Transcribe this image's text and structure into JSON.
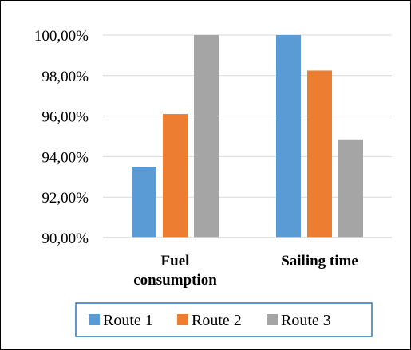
{
  "chart_data": {
    "type": "bar",
    "categories": [
      [
        "Fuel",
        "consumption"
      ],
      [
        "Sailing time"
      ]
    ],
    "series": [
      {
        "name": "Route 1",
        "color": "#5B9BD5",
        "values": [
          93.5,
          100.0
        ]
      },
      {
        "name": "Route 2",
        "color": "#ED7D31",
        "values": [
          96.1,
          98.25
        ]
      },
      {
        "name": "Route 3",
        "color": "#A5A5A5",
        "values": [
          100.0,
          94.85
        ]
      }
    ],
    "y_ticks": [
      "90,00%",
      "92,00%",
      "94,00%",
      "96,00%",
      "98,00%",
      "100,00%"
    ],
    "ylim": [
      90,
      100
    ],
    "grid": true,
    "legend_position": "bottom",
    "legend_border_color": "#2E75B6",
    "gridline_color": "#D9D9D9"
  }
}
